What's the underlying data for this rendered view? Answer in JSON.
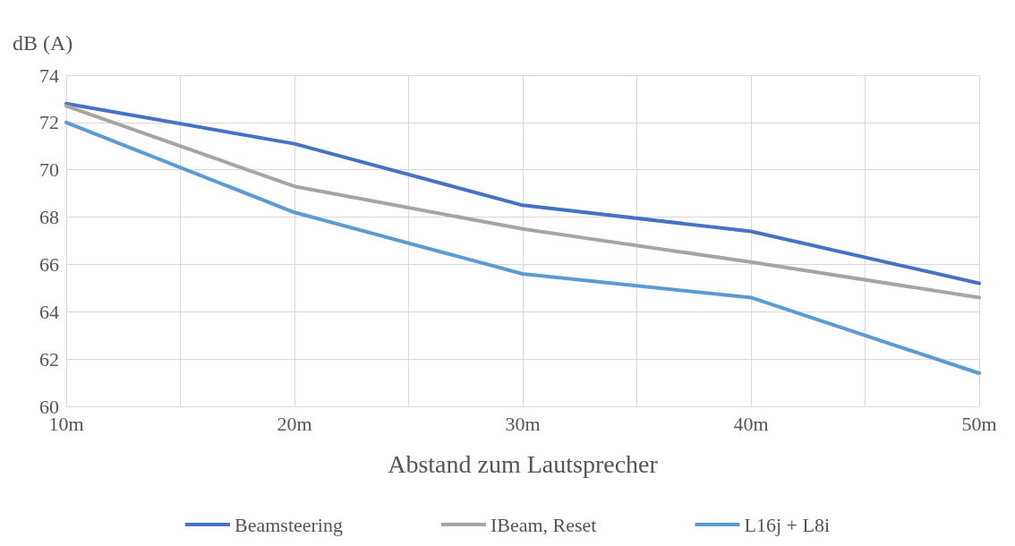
{
  "chart_data": {
    "type": "line",
    "xlabel": "Abstand zum Lautsprecher",
    "ylabel": "dB (A)",
    "x": [
      10,
      20,
      30,
      40,
      50
    ],
    "xlim": [
      10,
      50
    ],
    "xticks": [
      {
        "value": 10,
        "label": "10m"
      },
      {
        "value": 15,
        "label": null
      },
      {
        "value": 20,
        "label": "20m"
      },
      {
        "value": 25,
        "label": null
      },
      {
        "value": 30,
        "label": "30m"
      },
      {
        "value": 35,
        "label": null
      },
      {
        "value": 40,
        "label": "40m"
      },
      {
        "value": 45,
        "label": null
      },
      {
        "value": 50,
        "label": "50m"
      }
    ],
    "ylim": [
      60,
      74
    ],
    "yticks": [
      60,
      62,
      64,
      66,
      68,
      70,
      72,
      74
    ],
    "series": [
      {
        "name": "Beamsteering",
        "color": "#4472c4",
        "values": [
          72.8,
          71.1,
          68.5,
          67.4,
          65.2
        ]
      },
      {
        "name": "IBeam, Reset",
        "color": "#a5a5a5",
        "values": [
          72.7,
          69.3,
          67.5,
          66.1,
          64.6
        ]
      },
      {
        "name": "L16j + L8i",
        "color": "#5b9bd5",
        "values": [
          72.0,
          68.2,
          65.6,
          64.6,
          61.4
        ]
      }
    ],
    "grid": true,
    "legend": "bottom",
    "marker": "none",
    "line_style": "solid"
  }
}
